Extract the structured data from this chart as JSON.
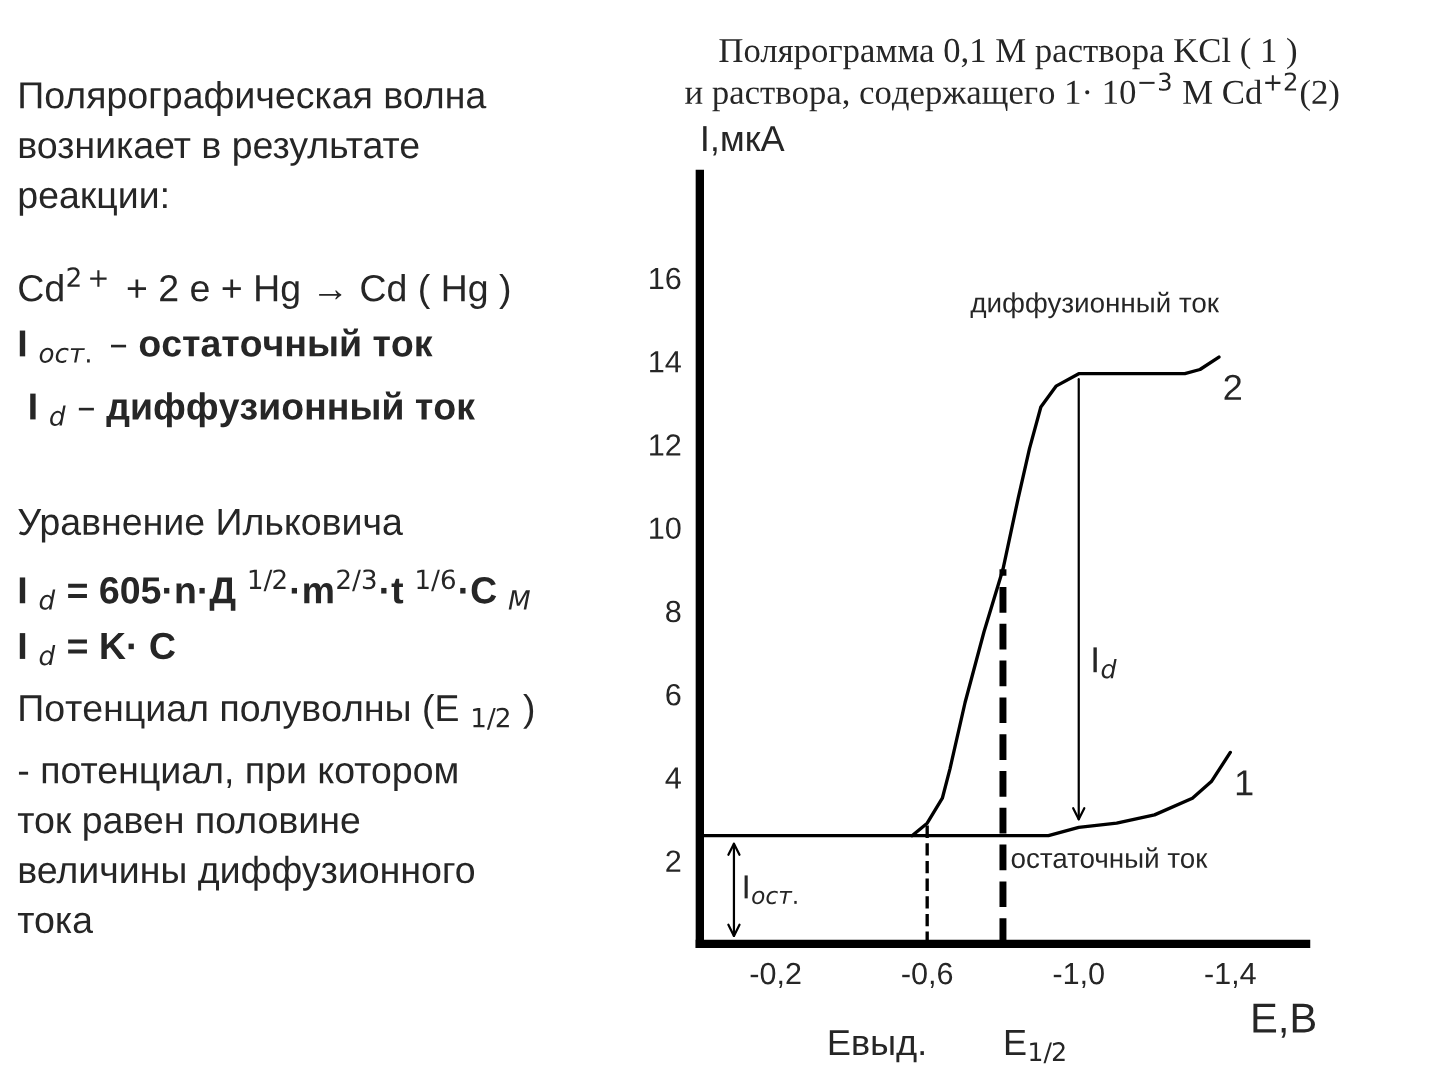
{
  "chart_data": {
    "type": "line",
    "title": "Полярограмма 0,1 М раствора KCl ( 1 )\n и раствора, содержащего 1· 10$^{−3}$ М Cd$^{+2}$(2)",
    "xlabel": "E,B",
    "ylabel": "I,мкА",
    "series": [
      {
        "name": "1",
        "color": "#000000",
        "x": [
          0,
          -0.2,
          -0.4,
          -0.6,
          -0.8,
          -0.92,
          -1.0,
          -1.1,
          -1.2,
          -1.3,
          -1.35,
          -1.4
        ],
        "values": [
          2.6,
          2.6,
          2.6,
          2.6,
          2.6,
          2.6,
          2.8,
          2.9,
          3.1,
          3.5,
          3.9,
          4.6
        ]
      },
      {
        "name": "2",
        "color": "#000000",
        "x": [
          -0.56,
          -0.6,
          -0.64,
          -0.66,
          -0.7,
          -0.75,
          -0.8,
          -0.84,
          -0.87,
          -0.9,
          -0.94,
          -1.0,
          -1.1,
          -1.2,
          -1.28,
          -1.32,
          -1.37
        ],
        "values": [
          2.6,
          2.9,
          3.5,
          4.2,
          5.8,
          7.5,
          9.0,
          10.7,
          11.9,
          12.9,
          13.4,
          13.7,
          13.7,
          13.7,
          13.7,
          13.8,
          14.1
        ]
      }
    ],
    "xlim": [
      0,
      -1.6
    ],
    "xticks": [
      {
        "value": -0.2,
        "label": "-0,2"
      },
      {
        "value": -0.6,
        "label": "-0,6"
      },
      {
        "value": -1.0,
        "label": "-1,0"
      },
      {
        "value": -1.4,
        "label": "-1,4"
      }
    ],
    "ylim": [
      0,
      18.5
    ],
    "yticks": [
      2,
      4,
      6,
      8,
      10,
      12,
      14,
      16
    ],
    "ref_lines": [
      {
        "axis": "x",
        "value": -0.6,
        "label": "Eвыд.",
        "line_style": "dashed"
      },
      {
        "axis": "x",
        "value": -0.8,
        "label": "E$_{1/2}$",
        "line_style": "dashed"
      }
    ],
    "annotations": [
      {
        "text": "I$_{ост.}$",
        "x": -0.09,
        "y": 2.6
      },
      {
        "text": "остаточный ток",
        "x": -0.82,
        "y": 2.0
      },
      "диффузионный ток",
      "I$_{d}$",
      "Полярографическая волна\nвозникает в результате\nреакции:",
      "Cd$^{2+}$ + 2 e + Hg → Cd ( Hg )",
      "I $_{ост.}$ – остаточный ток",
      " I $_{d}$ – диффузионный ток",
      "Уравнение Ильковича",
      "I $_{d}$ = 605·n·Д $^{1/2}$·m$^{2/3}$·t $^{1/6}$·C $_{М}$",
      "I $_{d}$ = K· C",
      "Потенциал полуволны (E $_{1/2}$ )",
      "- потенциал, при котором\nток равен половине\nвеличины диффузионного\nтока"
    ],
    "grid": false
  }
}
